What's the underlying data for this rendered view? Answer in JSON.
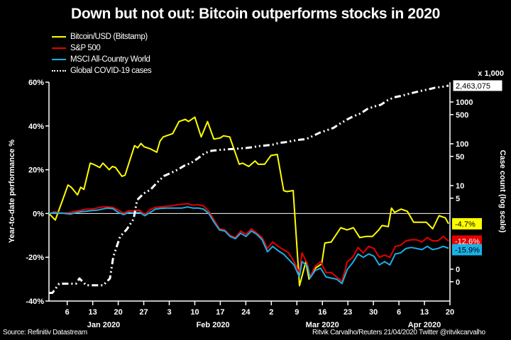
{
  "chart_data": {
    "type": "line",
    "title": "Down but not out: Bitcoin outperforms stocks in 2020",
    "xlabel": "",
    "ylabel": "Year-to-date performance %",
    "y2label": "Case count (log scale)",
    "y2_unit_label": "x 1,000",
    "ylim": [
      -40,
      60
    ],
    "y_ticks": [
      60,
      40,
      20,
      0,
      -20,
      -40
    ],
    "y_tick_labels": [
      "60%",
      "40%",
      "20%",
      "0%",
      "-20%",
      "-40%"
    ],
    "y2_scale": "log",
    "y2_ticks": [
      1000,
      500,
      100,
      50,
      10,
      5,
      0.1,
      0.05
    ],
    "y2_tick_labels": [
      "1000",
      "500",
      "100",
      "50",
      "10",
      "5",
      "0",
      "0"
    ],
    "x_day_range": [
      1,
      111
    ],
    "x_ticks": [
      {
        "day": 6,
        "label": "6"
      },
      {
        "day": 13,
        "label": "13"
      },
      {
        "day": 20,
        "label": "20"
      },
      {
        "day": 27,
        "label": "27"
      },
      {
        "day": 34,
        "label": "3"
      },
      {
        "day": 41,
        "label": "10"
      },
      {
        "day": 48,
        "label": "17"
      },
      {
        "day": 55,
        "label": "24"
      },
      {
        "day": 62,
        "label": "2"
      },
      {
        "day": 69,
        "label": "9"
      },
      {
        "day": 76,
        "label": "16"
      },
      {
        "day": 83,
        "label": "23"
      },
      {
        "day": 90,
        "label": "30"
      },
      {
        "day": 97,
        "label": "6"
      },
      {
        "day": 104,
        "label": "13"
      },
      {
        "day": 111,
        "label": "20"
      }
    ],
    "month_labels": [
      {
        "day": 16,
        "label": "Jan 2020"
      },
      {
        "day": 46,
        "label": "Feb 2020"
      },
      {
        "day": 76,
        "label": "Mar 2020"
      },
      {
        "day": 104,
        "label": "Apr 2020"
      }
    ],
    "legend_position": "top-left",
    "series": [
      {
        "name": "Bitcoin/USD (Bitstamp)",
        "color": "#ffff00",
        "axis": "left",
        "end_label": "-4.7%",
        "points": [
          [
            1,
            0
          ],
          [
            3,
            -3
          ],
          [
            5,
            5
          ],
          [
            7,
            13
          ],
          [
            8,
            12
          ],
          [
            10,
            8.5
          ],
          [
            11,
            12
          ],
          [
            12,
            11
          ],
          [
            14,
            23
          ],
          [
            15,
            22.5
          ],
          [
            17,
            21
          ],
          [
            18,
            23
          ],
          [
            20,
            20
          ],
          [
            21,
            21.5
          ],
          [
            22,
            21
          ],
          [
            24,
            17
          ],
          [
            25,
            17.5
          ],
          [
            28,
            31
          ],
          [
            29,
            30
          ],
          [
            30,
            32
          ],
          [
            31,
            30.5
          ],
          [
            33,
            29.5
          ],
          [
            35,
            28
          ],
          [
            36,
            33
          ],
          [
            37,
            35
          ],
          [
            39,
            36
          ],
          [
            40,
            36.5
          ],
          [
            42,
            42
          ],
          [
            44,
            43
          ],
          [
            45,
            42
          ],
          [
            47,
            44
          ],
          [
            49,
            35
          ],
          [
            51,
            42
          ],
          [
            53,
            34
          ],
          [
            55,
            34.5
          ],
          [
            56,
            35.5
          ],
          [
            58,
            35
          ],
          [
            61,
            22.5
          ],
          [
            62,
            23
          ],
          [
            64,
            21.5
          ],
          [
            66,
            24
          ],
          [
            67,
            22.5
          ],
          [
            69,
            22.5
          ],
          [
            71,
            26.5
          ],
          [
            73,
            27
          ],
          [
            75,
            10.5
          ],
          [
            76,
            10
          ],
          [
            78,
            10.5
          ],
          [
            80,
            -33
          ],
          [
            82,
            -22
          ],
          [
            83,
            -30
          ],
          [
            85,
            -25
          ],
          [
            87,
            -23
          ],
          [
            88,
            -13.5
          ],
          [
            90,
            -13
          ],
          [
            93,
            -6.5
          ],
          [
            95,
            -7.5
          ],
          [
            97,
            -6.5
          ],
          [
            99,
            -11
          ],
          [
            101,
            -10.5
          ],
          [
            103,
            -10.5
          ],
          [
            105,
            -7.5
          ],
          [
            106,
            -5.5
          ],
          [
            108,
            -6
          ],
          [
            109,
            2.5
          ],
          [
            110,
            0.5
          ],
          [
            112,
            2
          ],
          [
            114,
            1
          ],
          [
            116,
            -4
          ],
          [
            118,
            -4
          ],
          [
            120,
            -4
          ],
          [
            122,
            -7
          ],
          [
            124,
            -1
          ],
          [
            126,
            -2
          ],
          [
            127,
            -4.7
          ]
        ]
      },
      {
        "name": "S&P 500",
        "color": "#e60000",
        "axis": "left",
        "end_label": "-12.6%",
        "points": [
          [
            1,
            0
          ],
          [
            3,
            0.8
          ],
          [
            5,
            0.3
          ],
          [
            7,
            0.2
          ],
          [
            9,
            0.5
          ],
          [
            11,
            1
          ],
          [
            13,
            1.5
          ],
          [
            15,
            2
          ],
          [
            17,
            2
          ],
          [
            19,
            2.5
          ],
          [
            21,
            3
          ],
          [
            23,
            3
          ],
          [
            25,
            2.8
          ],
          [
            27,
            1.5
          ],
          [
            29,
            0.2
          ],
          [
            31,
            1.2
          ],
          [
            33,
            1.3
          ],
          [
            35,
            1.5
          ],
          [
            37,
            -0.5
          ],
          [
            39,
            1.8
          ],
          [
            41,
            2.8
          ],
          [
            43,
            3
          ],
          [
            45,
            3.3
          ],
          [
            47,
            3.5
          ],
          [
            49,
            4
          ],
          [
            51,
            4.2
          ],
          [
            53,
            4.5
          ],
          [
            55,
            3.8
          ],
          [
            57,
            4
          ],
          [
            59,
            3.5
          ],
          [
            61,
            1
          ],
          [
            63,
            -3
          ],
          [
            65,
            -7
          ],
          [
            67,
            -7.5
          ],
          [
            69,
            -10
          ],
          [
            71,
            -11
          ],
          [
            73,
            -8
          ],
          [
            75,
            -9.5
          ],
          [
            77,
            -7
          ],
          [
            79,
            -9
          ],
          [
            81,
            -11
          ],
          [
            83,
            -16
          ],
          [
            85,
            -13
          ],
          [
            87,
            -15
          ],
          [
            89,
            -16.5
          ],
          [
            91,
            -18
          ],
          [
            93,
            -22
          ],
          [
            95,
            -27
          ],
          [
            96,
            -18
          ],
          [
            98,
            -23
          ],
          [
            99,
            -29
          ],
          [
            101,
            -24
          ],
          [
            103,
            -22
          ],
          [
            105,
            -27
          ],
          [
            107,
            -27
          ],
          [
            109,
            -29
          ],
          [
            111,
            -31
          ],
          [
            113,
            -22
          ],
          [
            115,
            -20
          ],
          [
            117,
            -15.5
          ],
          [
            119,
            -18
          ],
          [
            121,
            -15
          ],
          [
            123,
            -16
          ],
          [
            125,
            -20
          ],
          [
            127,
            -19
          ],
          [
            129,
            -20
          ],
          [
            131,
            -15
          ],
          [
            133,
            -14.5
          ],
          [
            135,
            -12.5
          ],
          [
            137,
            -12
          ],
          [
            139,
            -12
          ],
          [
            141,
            -13
          ],
          [
            143,
            -11
          ],
          [
            145,
            -12.5
          ],
          [
            147,
            -12.5
          ],
          [
            149,
            -10.5
          ],
          [
            151,
            -12.6
          ]
        ]
      },
      {
        "name": "MSCI All-Country World",
        "color": "#1ab0e6",
        "axis": "left",
        "end_label": "-15.9%",
        "points": [
          [
            1,
            0
          ],
          [
            3,
            0.3
          ],
          [
            5,
            0.2
          ],
          [
            7,
            0
          ],
          [
            9,
            -0.3
          ],
          [
            11,
            0.3
          ],
          [
            13,
            0.8
          ],
          [
            15,
            1
          ],
          [
            17,
            1.3
          ],
          [
            19,
            1.5
          ],
          [
            21,
            2
          ],
          [
            23,
            2.5
          ],
          [
            25,
            2.2
          ],
          [
            27,
            0.5
          ],
          [
            29,
            -0.5
          ],
          [
            31,
            0.5
          ],
          [
            33,
            0.3
          ],
          [
            35,
            0.5
          ],
          [
            37,
            -1
          ],
          [
            39,
            0.5
          ],
          [
            41,
            2
          ],
          [
            43,
            2.3
          ],
          [
            45,
            2.5
          ],
          [
            47,
            2.5
          ],
          [
            49,
            2.5
          ],
          [
            51,
            2.5
          ],
          [
            53,
            3
          ],
          [
            55,
            2.5
          ],
          [
            57,
            2.5
          ],
          [
            59,
            2
          ],
          [
            61,
            0
          ],
          [
            63,
            -4
          ],
          [
            65,
            -7.5
          ],
          [
            67,
            -8
          ],
          [
            69,
            -10.5
          ],
          [
            71,
            -11.5
          ],
          [
            73,
            -9
          ],
          [
            75,
            -10.5
          ],
          [
            77,
            -8
          ],
          [
            79,
            -9.5
          ],
          [
            81,
            -12
          ],
          [
            83,
            -17.5
          ],
          [
            85,
            -15
          ],
          [
            87,
            -17
          ],
          [
            89,
            -18.5
          ],
          [
            91,
            -21
          ],
          [
            93,
            -23.5
          ],
          [
            95,
            -29
          ],
          [
            96,
            -22
          ],
          [
            98,
            -24
          ],
          [
            99,
            -29.5
          ],
          [
            101,
            -26
          ],
          [
            103,
            -25
          ],
          [
            105,
            -29
          ],
          [
            107,
            -29.5
          ],
          [
            109,
            -30
          ],
          [
            111,
            -32
          ],
          [
            113,
            -25.5
          ],
          [
            115,
            -22.5
          ],
          [
            117,
            -18.5
          ],
          [
            119,
            -20
          ],
          [
            121,
            -18.5
          ],
          [
            123,
            -19.5
          ],
          [
            125,
            -23.5
          ],
          [
            127,
            -22
          ],
          [
            129,
            -23.5
          ],
          [
            131,
            -18.5
          ],
          [
            133,
            -18
          ],
          [
            135,
            -16
          ],
          [
            137,
            -15.5
          ],
          [
            139,
            -16
          ],
          [
            141,
            -16.5
          ],
          [
            143,
            -15
          ],
          [
            145,
            -16.5
          ],
          [
            147,
            -16
          ],
          [
            149,
            -15
          ],
          [
            151,
            -15.9
          ]
        ]
      },
      {
        "name": "Global COVID-19 cases",
        "color": "#ffffff",
        "axis": "right",
        "unit": "thousands",
        "end_label": "2,463,075",
        "points": [
          [
            1,
            0.027
          ],
          [
            2,
            0.027
          ],
          [
            4,
            0.045
          ],
          [
            6,
            0.045
          ],
          [
            9,
            0.045
          ],
          [
            10,
            0.06
          ],
          [
            12,
            0.041
          ],
          [
            15,
            0.041
          ],
          [
            17,
            0.041
          ],
          [
            19,
            0.06
          ],
          [
            20,
            0.2
          ],
          [
            22,
            0.6
          ],
          [
            24,
            0.9
          ],
          [
            26,
            1.6
          ],
          [
            27,
            4.5
          ],
          [
            29,
            6.5
          ],
          [
            31,
            8
          ],
          [
            33,
            12
          ],
          [
            35,
            17
          ],
          [
            37,
            20
          ],
          [
            39,
            24
          ],
          [
            41,
            30
          ],
          [
            43,
            35
          ],
          [
            45,
            45
          ],
          [
            47,
            60
          ],
          [
            49,
            68
          ],
          [
            51,
            71
          ],
          [
            53,
            73
          ],
          [
            55,
            75
          ],
          [
            57,
            77
          ],
          [
            59,
            79
          ],
          [
            61,
            83
          ],
          [
            63,
            88
          ],
          [
            65,
            91
          ],
          [
            67,
            95
          ],
          [
            69,
            105
          ],
          [
            71,
            110
          ],
          [
            73,
            118
          ],
          [
            75,
            125
          ],
          [
            77,
            130
          ],
          [
            79,
            155
          ],
          [
            81,
            185
          ],
          [
            83,
            210
          ],
          [
            85,
            240
          ],
          [
            87,
            305
          ],
          [
            89,
            380
          ],
          [
            91,
            460
          ],
          [
            93,
            530
          ],
          [
            95,
            680
          ],
          [
            97,
            780
          ],
          [
            99,
            860
          ],
          [
            101,
            1100
          ],
          [
            103,
            1300
          ],
          [
            105,
            1400
          ],
          [
            107,
            1550
          ],
          [
            109,
            1700
          ],
          [
            111,
            1850
          ],
          [
            113,
            2000
          ],
          [
            115,
            2200
          ],
          [
            117,
            2300
          ],
          [
            119,
            2463.075
          ]
        ]
      }
    ]
  },
  "legend": {
    "items": [
      {
        "label": "Bitcoin/USD (Bitstamp)",
        "color": "#ffff00",
        "style": "solid"
      },
      {
        "label": "S&P 500",
        "color": "#e60000",
        "style": "solid"
      },
      {
        "label": "MSCI All-Country World",
        "color": "#1ab0e6",
        "style": "solid"
      },
      {
        "label": "Global COVID-19 cases",
        "color": "#ffffff",
        "style": "dash-dot"
      }
    ]
  },
  "footer": {
    "source": "Source: Refinitiv Datastream",
    "credit": "Ritvik Carvalho/Reuters 21/04/2020 Twitter @ritvikcarvalho"
  }
}
